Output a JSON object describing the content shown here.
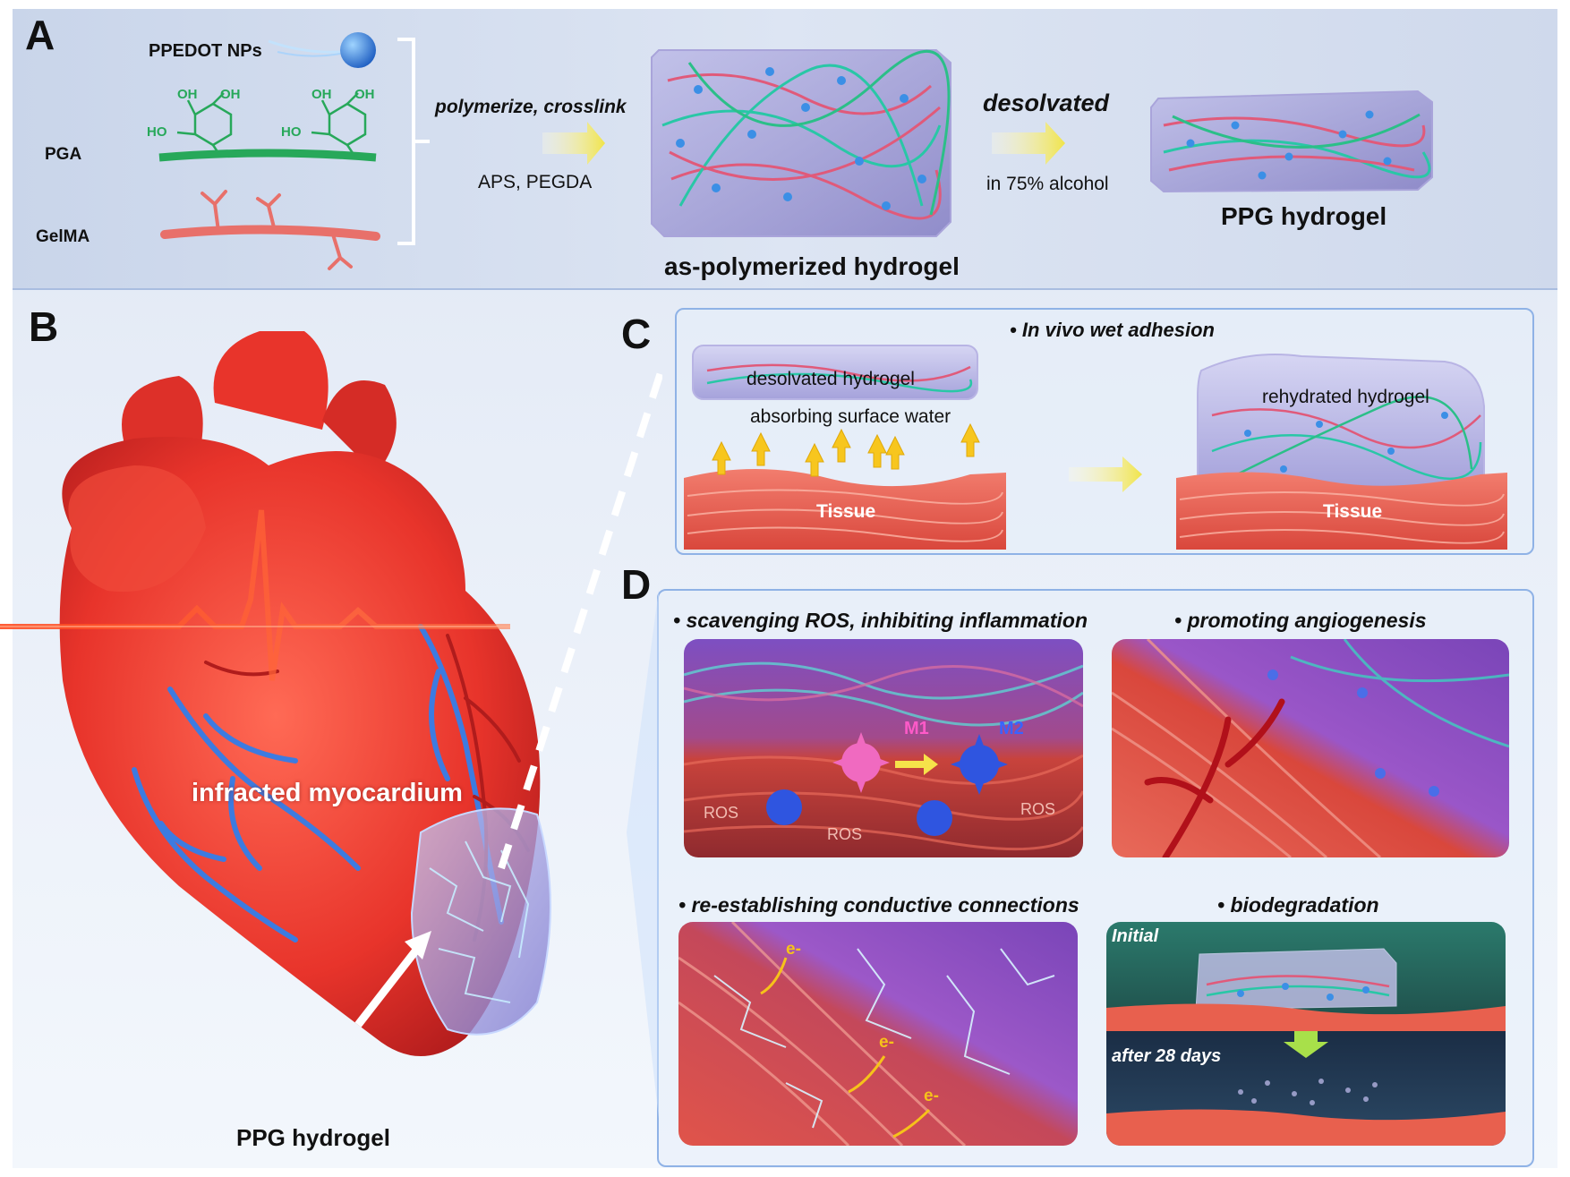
{
  "panel_a": {
    "letter": "A",
    "ppedot_label": "PPEDOT NPs",
    "pga_label": "PGA",
    "gelma_label": "GelMA",
    "oh_labels": [
      "OH",
      "OH",
      "HO",
      "OH",
      "OH",
      "HO"
    ],
    "step1_top": "polymerize, crosslink",
    "step1_bottom": "APS, PEGDA",
    "intermediate_caption": "as-polymerized hydrogel",
    "step2_top": "desolvated",
    "step2_bottom": "in 75% alcohol",
    "product_caption": "PPG hydrogel"
  },
  "panel_b": {
    "letter": "B",
    "infarct_label": "infracted myocardium",
    "patch_label": "PPG hydrogel"
  },
  "panel_c": {
    "letter": "C",
    "title": "In vivo wet adhesion",
    "desolvated_label": "desolvated hydrogel",
    "absorbing_label": "absorbing surface water",
    "rehydrated_label": "rehydrated hydrogel",
    "tissue_label_left": "Tissue",
    "tissue_label_right": "Tissue"
  },
  "panel_d": {
    "letter": "D",
    "ros_title": "scavenging ROS, inhibiting inflammation",
    "angio_title": "promoting angiogenesis",
    "conductive_title": "re-establishing conductive connections",
    "biodeg_title": "biodegradation",
    "m1_label": "M1",
    "m2_label": "M2",
    "ros_labels": [
      "ROS",
      "ROS",
      "ROS"
    ],
    "electron_labels": [
      "e-",
      "e-",
      "e-"
    ],
    "initial_label": "Initial",
    "after_label": "after 28 days"
  },
  "colors": {
    "panel_a_bg": "#cfd9ec",
    "box_border": "#8fb2e6",
    "heart_red": "#e8342b",
    "vessel_blue": "#3d7be0",
    "hydrogel_purple": "#8e86c9",
    "arrow_yellow": "#f3e96a",
    "gelma_pink": "#e8706a",
    "pga_green": "#27a85a"
  }
}
